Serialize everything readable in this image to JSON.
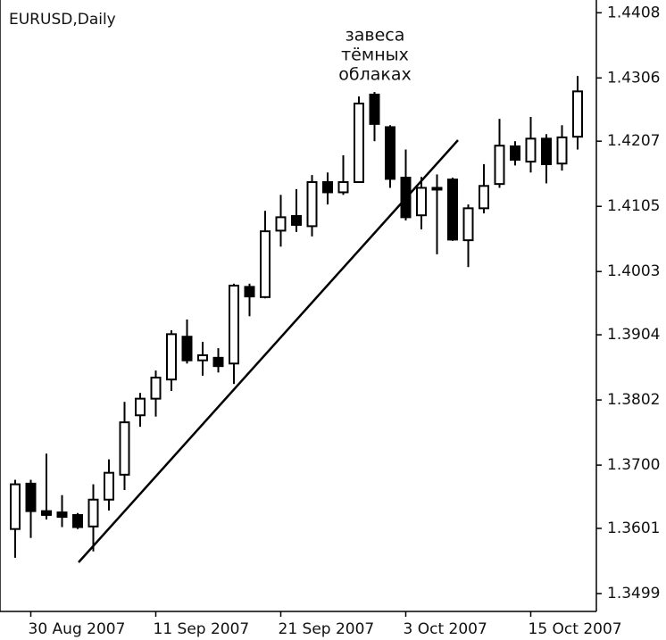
{
  "chart_data": {
    "type": "candlestick",
    "title": "EURUSD,Daily",
    "annotation": [
      "завеса",
      "тёмных",
      "облаках"
    ],
    "categories": [
      null,
      "30 Aug 2007",
      null,
      null,
      null,
      null,
      null,
      null,
      null,
      "11 Sep 2007",
      null,
      null,
      null,
      null,
      null,
      null,
      null,
      "21 Sep 2007",
      null,
      null,
      null,
      null,
      null,
      null,
      null,
      "3 Oct 2007",
      null,
      null,
      null,
      null,
      null,
      null,
      null,
      "15 Oct 2007",
      null,
      null,
      null
    ],
    "open": [
      1.36,
      1.3671,
      1.3628,
      1.3626,
      1.3622,
      1.3604,
      1.3646,
      1.3685,
      1.3778,
      1.3804,
      1.3834,
      1.3901,
      1.3864,
      1.3868,
      1.3859,
      1.3979,
      1.3963,
      1.4067,
      1.409,
      1.4074,
      1.4143,
      1.4127,
      1.4143,
      1.428,
      1.4229,
      1.415,
      1.4091,
      1.4134,
      1.4147,
      1.4052,
      1.4102,
      1.414,
      1.4199,
      1.4175,
      1.4211,
      1.4172,
      1.4214
    ],
    "high": [
      1.3677,
      1.3677,
      1.3718,
      1.3653,
      1.3625,
      1.367,
      1.3709,
      1.3799,
      1.3813,
      1.3848,
      1.3911,
      1.3928,
      1.3893,
      1.3883,
      1.3984,
      1.3984,
      1.4098,
      1.4123,
      1.4132,
      1.4154,
      1.4158,
      1.4185,
      1.4277,
      1.4284,
      1.4232,
      1.4194,
      1.4151,
      1.4155,
      1.415,
      1.4108,
      1.4171,
      1.4242,
      1.4207,
      1.4245,
      1.4218,
      1.4232,
      1.4309
    ],
    "low": [
      1.3555,
      1.3586,
      1.3615,
      1.3603,
      1.36,
      1.3565,
      1.3629,
      1.3661,
      1.376,
      1.3776,
      1.3816,
      1.3859,
      1.384,
      1.3845,
      1.3827,
      1.3933,
      1.3961,
      1.4042,
      1.4065,
      1.4058,
      1.4108,
      1.4123,
      1.4143,
      1.4207,
      1.4134,
      1.4083,
      1.4069,
      1.403,
      1.4051,
      1.401,
      1.4094,
      1.4134,
      1.4169,
      1.4158,
      1.4141,
      1.4161,
      1.4194
    ],
    "close": [
      1.367,
      1.3628,
      1.3622,
      1.3619,
      1.3603,
      1.3646,
      1.3688,
      1.3767,
      1.3804,
      1.3837,
      1.3905,
      1.3864,
      1.3872,
      1.3855,
      1.3981,
      1.3964,
      1.4066,
      1.4088,
      1.4076,
      1.4143,
      1.4127,
      1.4143,
      1.4266,
      1.4234,
      1.4148,
      1.4088,
      1.4134,
      1.4132,
      1.4053,
      1.4102,
      1.4137,
      1.42,
      1.4178,
      1.4211,
      1.4171,
      1.4213,
      1.4285
    ],
    "up_color": "#ffffff",
    "down_color": "#000000",
    "ylim": [
      1.3471,
      1.4428
    ],
    "yticks": [
      1.3499,
      1.3601,
      {
        "value": 1.37,
        "label": "1.3700"
      },
      1.3802,
      1.3904,
      1.4003,
      1.4105,
      1.4207,
      1.4306,
      1.4408
    ]
  }
}
